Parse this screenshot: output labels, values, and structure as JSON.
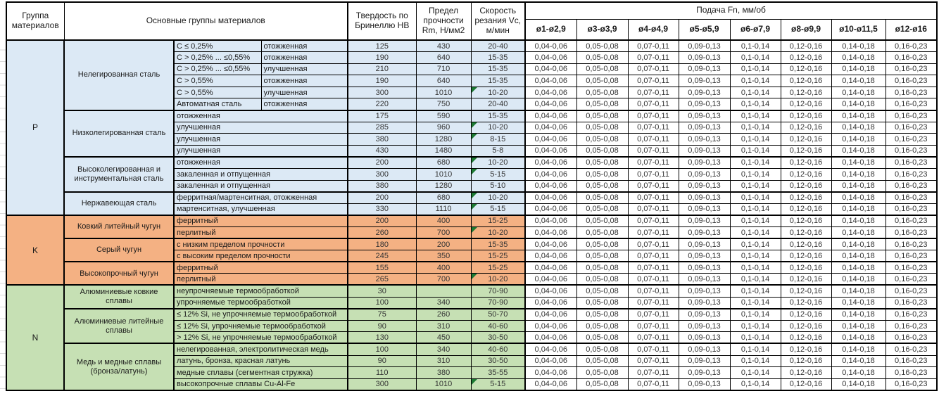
{
  "sheet": {
    "header": {
      "group": "Группа материалов",
      "materials": "Основные группы материалов",
      "hardness": "Твердость по Бринеллю HB",
      "strength": "Предел прочности Rm, Н/мм2",
      "speed": "Скорость резания Vc, м/мин",
      "feed": "Подача Fn, мм/об",
      "diameters": [
        "ø1-ø2,9",
        "ø3-ø3,9",
        "ø4-ø4,9",
        "ø5-ø5,9",
        "ø6-ø7,9",
        "ø8-ø9,9",
        "ø10-ø11,5",
        "ø12-ø16"
      ]
    },
    "feed_values": [
      "0,04-0,06",
      "0,05-0,08",
      "0,07-0,11",
      "0,09-0,13",
      "0,1-0,14",
      "0,12-0,16",
      "0,14-0,18",
      "0,16-0,23"
    ],
    "colors": {
      "group_p": "#DCE9F5",
      "group_k": "#F4B183",
      "group_n": "#C6E0B4",
      "marker": "#1D7A33",
      "border": "#000000"
    },
    "groups": [
      {
        "id": "P",
        "subgroups": [
          {
            "name": "Нелегированная сталь",
            "rows": [
              {
                "materials": [
                  "C ≤ 0,25%",
                  "отожженная"
                ],
                "hb": "125",
                "rm": "430",
                "vc": "20-40",
                "marker": false
              },
              {
                "materials": [
                  "C > 0,25% ... ≤0,55%",
                  "отожженная"
                ],
                "hb": "190",
                "rm": "640",
                "vc": "15-35",
                "marker": false
              },
              {
                "materials": [
                  "C > 0,25% ... ≤0,55%",
                  "улучшенная"
                ],
                "hb": "210",
                "rm": "710",
                "vc": "15-35",
                "marker": false
              },
              {
                "materials": [
                  "C > 0,55%",
                  "отожженная"
                ],
                "hb": "190",
                "rm": "640",
                "vc": "15-35",
                "marker": false
              },
              {
                "materials": [
                  "C > 0,55%",
                  "улучшенная"
                ],
                "hb": "300",
                "rm": "1010",
                "vc": "10-20",
                "marker": true
              },
              {
                "materials": [
                  "Автоматная сталь",
                  "отожженная"
                ],
                "hb": "220",
                "rm": "750",
                "vc": "20-40",
                "marker": false
              }
            ]
          },
          {
            "name": "Низколегированная сталь",
            "rows": [
              {
                "materials": [
                  "отожженная"
                ],
                "hb": "175",
                "rm": "590",
                "vc": "15-35",
                "marker": false
              },
              {
                "materials": [
                  "улучшенная"
                ],
                "hb": "285",
                "rm": "960",
                "vc": "10-20",
                "marker": true
              },
              {
                "materials": [
                  "улучшенная"
                ],
                "hb": "380",
                "rm": "1280",
                "vc": "8-15",
                "marker": true
              },
              {
                "materials": [
                  "улучшенная"
                ],
                "hb": "430",
                "rm": "1480",
                "vc": "5-8",
                "marker": false
              }
            ]
          },
          {
            "name": "Высоколегированная и инструментальная сталь",
            "rows": [
              {
                "materials": [
                  "отожженная"
                ],
                "hb": "200",
                "rm": "680",
                "vc": "10-20",
                "marker": true
              },
              {
                "materials": [
                  "закаленная и отпущенная"
                ],
                "hb": "300",
                "rm": "1010",
                "vc": "5-15",
                "marker": true
              },
              {
                "materials": [
                  "закаленная и отпущенная"
                ],
                "hb": "380",
                "rm": "1280",
                "vc": "5-10",
                "marker": false
              }
            ]
          },
          {
            "name": "Нержавеющая сталь",
            "rows": [
              {
                "materials": [
                  "ферритная/мартенситная, отожженная"
                ],
                "hb": "200",
                "rm": "680",
                "vc": "10-20",
                "marker": true
              },
              {
                "materials": [
                  "мартенситная, улучшенная"
                ],
                "hb": "330",
                "rm": "1110",
                "vc": "5-15",
                "marker": true
              }
            ]
          }
        ]
      },
      {
        "id": "K",
        "subgroups": [
          {
            "name": "Ковкий литейный чугун",
            "rows": [
              {
                "materials": [
                  "ферритный"
                ],
                "hb": "200",
                "rm": "400",
                "vc": "15-25",
                "marker": false
              },
              {
                "materials": [
                  "перлитный"
                ],
                "hb": "260",
                "rm": "700",
                "vc": "10-20",
                "marker": true
              }
            ]
          },
          {
            "name": "Серый чугун",
            "rows": [
              {
                "materials": [
                  "с низким пределом прочности"
                ],
                "hb": "180",
                "rm": "200",
                "vc": "15-35",
                "marker": false
              },
              {
                "materials": [
                  "с высоким пределом прочности"
                ],
                "hb": "245",
                "rm": "350",
                "vc": "15-25",
                "marker": false
              }
            ]
          },
          {
            "name": "Высокопрочный чугун",
            "rows": [
              {
                "materials": [
                  "ферритный"
                ],
                "hb": "155",
                "rm": "400",
                "vc": "15-25",
                "marker": false
              },
              {
                "materials": [
                  "перлитный"
                ],
                "hb": "265",
                "rm": "700",
                "vc": "10-20",
                "marker": true
              }
            ]
          }
        ]
      },
      {
        "id": "N",
        "subgroups": [
          {
            "name": "Алюминиевые ковкие сплавы",
            "rows": [
              {
                "materials": [
                  "неупрочняемые термообработкой"
                ],
                "hb": "30",
                "rm": "",
                "vc": "70-90",
                "marker": false
              },
              {
                "materials": [
                  "упрочняемые термообработкой"
                ],
                "hb": "100",
                "rm": "340",
                "vc": "70-90",
                "marker": false
              }
            ]
          },
          {
            "name": "Алюминиевые литейные сплавы",
            "rows": [
              {
                "materials": [
                  "≤ 12% Si, не упрочняемые термообработкой"
                ],
                "hb": "75",
                "rm": "260",
                "vc": "50-70",
                "marker": false
              },
              {
                "materials": [
                  "≤ 12% Si, упрочняемые термообработкой"
                ],
                "hb": "90",
                "rm": "310",
                "vc": "40-60",
                "marker": false
              },
              {
                "materials": [
                  "> 12% Si, не упрочняемые термообработкой"
                ],
                "hb": "130",
                "rm": "450",
                "vc": "30-50",
                "marker": false
              }
            ]
          },
          {
            "name": "Медь и медные сплавы (бронза/латунь)",
            "rows": [
              {
                "materials": [
                  "нелегированная, электролитическая медь"
                ],
                "hb": "100",
                "rm": "340",
                "vc": "40-60",
                "marker": false
              },
              {
                "materials": [
                  "латунь, бронза, красная латунь"
                ],
                "hb": "90",
                "rm": "310",
                "vc": "30-50",
                "marker": false
              },
              {
                "materials": [
                  "медные сплавы (сегментная стружка)"
                ],
                "hb": "110",
                "rm": "380",
                "vc": "35-55",
                "marker": false
              },
              {
                "materials": [
                  "высокопрочные сплавы Cu-Al-Fe"
                ],
                "hb": "300",
                "rm": "1010",
                "vc": "5-15",
                "marker": true
              }
            ]
          }
        ]
      }
    ]
  }
}
